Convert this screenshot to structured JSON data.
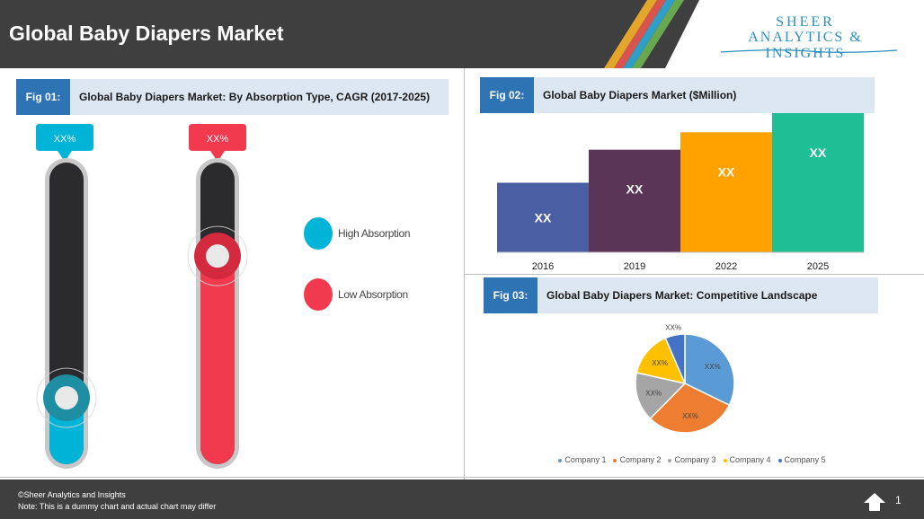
{
  "header": {
    "title": "Global Baby Diapers Market",
    "logo_line1": "SHEER",
    "logo_line2": "ANALYTICS & INSIGHTS"
  },
  "fig1": {
    "number": "Fig 01:",
    "title": "Global Baby Diapers Market: By Absorption Type, CAGR (2017-2025)",
    "gauges": [
      {
        "name": "High Absorption",
        "value_label": "XX%",
        "level": 0.22,
        "color": "#00b4d8"
      },
      {
        "name": "Low Absorption",
        "value_label": "XX%",
        "level": 0.69,
        "color": "#f23a4f"
      }
    ],
    "legend": [
      {
        "label": "High Absorption",
        "color": "#00b4d8"
      },
      {
        "label": "Low Absorption",
        "color": "#f23a4f"
      }
    ]
  },
  "fig2": {
    "number": "Fig 02:",
    "title": "Global Baby Diapers Market ($Million)"
  },
  "fig3": {
    "number": "Fig 03:",
    "title": "Global Baby Diapers Market: Competitive Landscape"
  },
  "chart_data": [
    {
      "type": "bar",
      "categories": [
        "2016",
        "2019",
        "2022",
        "2025"
      ],
      "values": [
        40,
        59,
        69,
        80
      ],
      "data_labels": [
        "XX",
        "XX",
        "XX",
        "XX"
      ],
      "colors": [
        "#4a5fa3",
        "#5b3558",
        "#ffa200",
        "#1fbf96"
      ],
      "ylim": [
        0,
        80
      ],
      "grid": false
    },
    {
      "type": "pie",
      "categories": [
        "Company 1",
        "Company 2",
        "Company 3",
        "Company 4",
        "Company 5"
      ],
      "values": [
        30,
        28,
        15,
        14,
        6
      ],
      "data_labels": [
        "XX%",
        "XX%",
        "XX%",
        "XX%",
        "XX%"
      ],
      "colors": [
        "#5b9bd5",
        "#ed7d31",
        "#a5a5a5",
        "#ffc000",
        "#4472c4"
      ],
      "legend_position": "bottom"
    }
  ],
  "footer": {
    "copyright": "©Sheer Analytics and Insights",
    "note": "Note: This is a dummy chart and actual chart may differ",
    "page_number": "1"
  }
}
